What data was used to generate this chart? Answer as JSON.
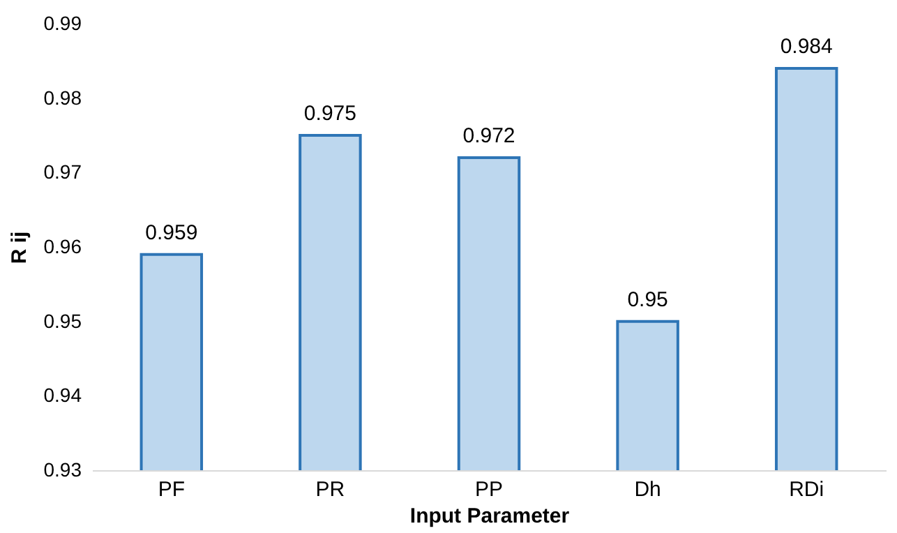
{
  "chart_data": {
    "type": "bar",
    "xlabel": "Input Parameter",
    "ylabel": "R ij",
    "categories": [
      "PF",
      "PR",
      "PP",
      "Dh",
      "RDi"
    ],
    "values": [
      0.959,
      0.975,
      0.972,
      0.95,
      0.984
    ],
    "color": "#bdd7ee",
    "ylim": [
      0.93,
      0.99
    ],
    "yticks": [
      0.93,
      0.94,
      0.95,
      0.96,
      0.97,
      0.98,
      0.99
    ],
    "data_labels": true
  }
}
